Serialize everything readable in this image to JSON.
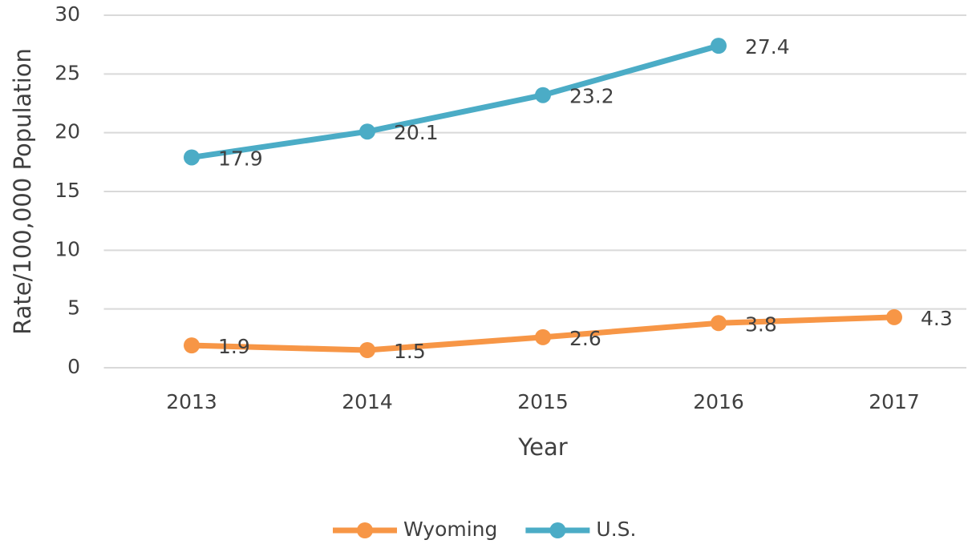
{
  "chart_data": {
    "type": "line",
    "x_label": "Year",
    "y_label": "Rate/100,000 Population",
    "categories": [
      "2013",
      "2014",
      "2015",
      "2016",
      "2017"
    ],
    "series": [
      {
        "name": "Wyoming",
        "color": "#f79646",
        "values": [
          1.9,
          1.5,
          2.6,
          3.8,
          4.3
        ]
      },
      {
        "name": "U.S.",
        "color": "#4bacc6",
        "values": [
          17.9,
          20.1,
          23.2,
          27.4,
          null
        ]
      }
    ],
    "ylim": [
      0,
      30
    ],
    "yticks": [
      0,
      5,
      10,
      15,
      20,
      25,
      30
    ],
    "grid": true,
    "legend": "bottom"
  }
}
